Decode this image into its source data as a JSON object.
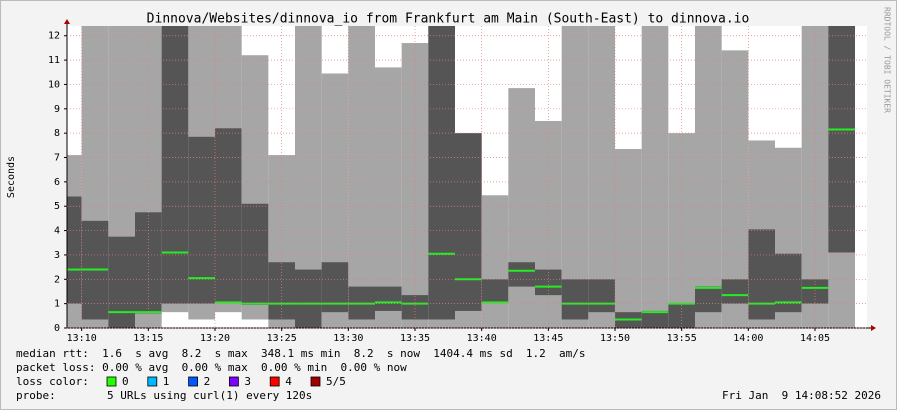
{
  "chart_data": {
    "type": "smokeping",
    "title": "Dinnova/Websites/dinnova_io from Frankfurt am Main (South-East) to dinnova.io",
    "y_label": "Seconds",
    "side_label": "RRDTOOL / TOBI OETIKER",
    "x": [
      8.9,
      10,
      12,
      14,
      16,
      18,
      20,
      22,
      24,
      26,
      28,
      30,
      32,
      34,
      36,
      38,
      40,
      42,
      44,
      46,
      48,
      50,
      52,
      54,
      56,
      58,
      60,
      62,
      64,
      66
    ],
    "smoke_low": [
      0,
      0,
      0,
      0,
      0.65,
      0.35,
      0.65,
      0.35,
      0,
      0,
      0,
      0,
      0,
      0,
      0,
      0,
      0,
      0,
      0,
      0,
      0,
      0,
      0,
      0,
      0,
      0,
      0,
      0,
      0,
      0
    ],
    "smoke_high": [
      7.1,
      12.4,
      12.4,
      12.4,
      12.4,
      12.4,
      12.4,
      11.2,
      7.1,
      12.4,
      10.45,
      12.4,
      10.7,
      11.7,
      12.4,
      8.0,
      5.45,
      9.85,
      8.5,
      12.4,
      12.4,
      7.35,
      12.4,
      8.0,
      12.4,
      11.4,
      7.7,
      7.4,
      12.4,
      12.4
    ],
    "core_low": [
      1.0,
      0.35,
      0,
      0.6,
      1.0,
      1.0,
      1.05,
      0.95,
      0.35,
      0,
      0.65,
      0.35,
      0.7,
      0.35,
      0.35,
      0.7,
      1.05,
      1.7,
      1.35,
      0.35,
      0.65,
      0,
      0,
      0,
      0.65,
      1.0,
      0.35,
      0.65,
      1.0,
      3.1
    ],
    "core_high": [
      5.4,
      4.4,
      3.75,
      4.75,
      12.4,
      7.85,
      8.2,
      5.1,
      2.7,
      2.4,
      2.7,
      1.7,
      1.7,
      1.35,
      12.4,
      8.0,
      2.0,
      2.7,
      2.4,
      2.0,
      2.0,
      0.65,
      0.7,
      1.0,
      1.7,
      2.0,
      4.05,
      3.05,
      2.0,
      12.4
    ],
    "median": [
      2.4,
      2.4,
      0.65,
      0.65,
      3.1,
      2.05,
      1.05,
      1.0,
      1.0,
      1.0,
      1.0,
      1.0,
      1.05,
      1.0,
      3.05,
      2.0,
      1.05,
      2.35,
      1.7,
      1.0,
      1.0,
      0.35,
      0.65,
      1.0,
      1.65,
      1.35,
      1.0,
      1.05,
      1.65,
      8.15
    ],
    "smoke_color": "#a6a6a6",
    "core_color": "#555555",
    "median_color": "#22ee22",
    "grid_color": "#e08080",
    "ylim": [
      0,
      12.4
    ],
    "yticks": [
      0,
      1,
      2,
      3,
      4,
      5,
      6,
      7,
      8,
      9,
      10,
      11,
      12
    ],
    "xlim": [
      8.9,
      68.9
    ],
    "xticks": [
      {
        "value": 10,
        "label": "13:10"
      },
      {
        "value": 15,
        "label": "13:15"
      },
      {
        "value": 20,
        "label": "13:20"
      },
      {
        "value": 25,
        "label": "13:25"
      },
      {
        "value": 30,
        "label": "13:30"
      },
      {
        "value": 35,
        "label": "13:35"
      },
      {
        "value": 40,
        "label": "13:40"
      },
      {
        "value": 45,
        "label": "13:45"
      },
      {
        "value": 50,
        "label": "13:50"
      },
      {
        "value": 55,
        "label": "13:55"
      },
      {
        "value": 60,
        "label": "14:00"
      },
      {
        "value": 65,
        "label": "14:05"
      }
    ],
    "grid": true,
    "stats": [
      "median rtt:  1.6  s avg  8.2  s max  348.1 ms min  8.2  s now  1404.4 ms sd  1.2  am/s",
      "packet loss: 0.00 % avg  0.00 % max  0.00 % min  0.00 % now"
    ],
    "loss_label": "loss color:",
    "loss_colors": [
      {
        "label": "0",
        "color": "#26ff00"
      },
      {
        "label": "1",
        "color": "#00b8ff"
      },
      {
        "label": "2",
        "color": "#0059ff"
      },
      {
        "label": "3",
        "color": "#7e00ff"
      },
      {
        "label": "4",
        "color": "#ff0000"
      },
      {
        "label": "5/5",
        "color": "#a10000"
      }
    ],
    "probe_label": "probe:",
    "probe": "5 URLs using curl(1) every 120s",
    "timestamp": "Fri Jan  9 14:08:52 2026"
  }
}
